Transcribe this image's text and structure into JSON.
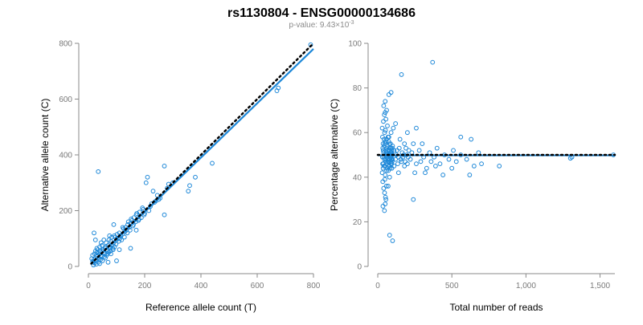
{
  "title": "rs1130804 - ENSG00000134686",
  "subtitle": {
    "prefix": "p-value: 9.43×10",
    "exponent": "-3"
  },
  "colors": {
    "points": "#1e88d8",
    "fit": "#1e88d8",
    "reference": "#000000",
    "axis": "#8a8a8a"
  },
  "chart_data": [
    {
      "type": "scatter",
      "xlabel": "Reference allele count (T)",
      "ylabel": "Alternative allele count (C)",
      "xlim": [
        0,
        800
      ],
      "ylim": [
        0,
        800
      ],
      "xticks": [
        {
          "v": 0,
          "label": "0"
        },
        {
          "v": 200,
          "label": "200"
        },
        {
          "v": 400,
          "label": "400"
        },
        {
          "v": 600,
          "label": "600"
        },
        {
          "v": 800,
          "label": "800"
        }
      ],
      "yticks": [
        {
          "v": 0,
          "label": "0"
        },
        {
          "v": 200,
          "label": "200"
        },
        {
          "v": 400,
          "label": "400"
        },
        {
          "v": 600,
          "label": "600"
        },
        {
          "v": 800,
          "label": "800"
        }
      ],
      "fit_line": [
        [
          10,
          10
        ],
        [
          800,
          780
        ]
      ],
      "reference_line": [
        [
          10,
          10
        ],
        [
          800,
          800
        ]
      ],
      "points": [
        [
          790,
          795
        ],
        [
          675,
          640
        ],
        [
          670,
          630
        ],
        [
          440,
          370
        ],
        [
          380,
          320
        ],
        [
          360,
          290
        ],
        [
          355,
          270
        ],
        [
          270,
          360
        ],
        [
          270,
          185
        ],
        [
          285,
          295
        ],
        [
          280,
          280
        ],
        [
          210,
          320
        ],
        [
          205,
          300
        ],
        [
          230,
          270
        ],
        [
          35,
          340
        ],
        [
          300,
          300
        ],
        [
          250,
          240
        ],
        [
          240,
          235
        ],
        [
          220,
          215
        ],
        [
          200,
          190
        ],
        [
          195,
          205
        ],
        [
          180,
          170
        ],
        [
          170,
          185
        ],
        [
          160,
          150
        ],
        [
          155,
          165
        ],
        [
          150,
          155
        ],
        [
          145,
          140
        ],
        [
          140,
          150
        ],
        [
          135,
          130
        ],
        [
          130,
          125
        ],
        [
          125,
          135
        ],
        [
          120,
          115
        ],
        [
          115,
          110
        ],
        [
          110,
          120
        ],
        [
          105,
          100
        ],
        [
          100,
          95
        ],
        [
          95,
          105
        ],
        [
          90,
          150
        ],
        [
          90,
          85
        ],
        [
          85,
          80
        ],
        [
          80,
          90
        ],
        [
          75,
          70
        ],
        [
          70,
          75
        ],
        [
          65,
          60
        ],
        [
          60,
          65
        ],
        [
          55,
          50
        ],
        [
          50,
          55
        ],
        [
          45,
          40
        ],
        [
          40,
          45
        ],
        [
          35,
          30
        ],
        [
          30,
          35
        ],
        [
          25,
          20
        ],
        [
          20,
          25
        ],
        [
          18,
          15
        ],
        [
          15,
          18
        ],
        [
          22,
          12
        ],
        [
          28,
          22
        ],
        [
          12,
          28
        ],
        [
          32,
          40
        ],
        [
          38,
          25
        ],
        [
          42,
          55
        ],
        [
          48,
          35
        ],
        [
          52,
          60
        ],
        [
          58,
          45
        ],
        [
          62,
          70
        ],
        [
          68,
          55
        ],
        [
          72,
          50
        ],
        [
          78,
          65
        ],
        [
          82,
          75
        ],
        [
          88,
          60
        ],
        [
          92,
          110
        ],
        [
          98,
          80
        ],
        [
          102,
          115
        ],
        [
          108,
          90
        ],
        [
          112,
          100
        ],
        [
          118,
          95
        ],
        [
          122,
          140
        ],
        [
          128,
          105
        ],
        [
          132,
          140
        ],
        [
          138,
          120
        ],
        [
          142,
          160
        ],
        [
          148,
          130
        ],
        [
          152,
          170
        ],
        [
          158,
          145
        ],
        [
          162,
          175
        ],
        [
          168,
          160
        ],
        [
          172,
          190
        ],
        [
          178,
          165
        ],
        [
          182,
          195
        ],
        [
          188,
          175
        ],
        [
          192,
          210
        ],
        [
          198,
          185
        ],
        [
          215,
          200
        ],
        [
          225,
          225
        ],
        [
          235,
          230
        ],
        [
          245,
          255
        ],
        [
          255,
          245
        ],
        [
          20,
          120
        ],
        [
          25,
          95
        ],
        [
          30,
          65
        ],
        [
          40,
          70
        ],
        [
          50,
          20
        ],
        [
          60,
          30
        ],
        [
          70,
          15
        ],
        [
          80,
          45
        ],
        [
          100,
          20
        ],
        [
          110,
          60
        ],
        [
          45,
          85
        ],
        [
          55,
          95
        ],
        [
          65,
          40
        ],
        [
          75,
          110
        ],
        [
          150,
          65
        ],
        [
          170,
          130
        ],
        [
          30,
          50
        ],
        [
          35,
          15
        ],
        [
          15,
          40
        ],
        [
          25,
          55
        ],
        [
          40,
          10
        ],
        [
          18,
          5
        ],
        [
          22,
          45
        ],
        [
          28,
          8
        ],
        [
          33,
          60
        ],
        [
          44,
          25
        ],
        [
          48,
          75
        ],
        [
          57,
          35
        ],
        [
          63,
          85
        ],
        [
          67,
          45
        ],
        [
          73,
          95
        ],
        [
          77,
          55
        ],
        [
          83,
          105
        ],
        [
          87,
          65
        ],
        [
          93,
          70
        ]
      ]
    },
    {
      "type": "scatter",
      "xlabel": "Total number of reads",
      "ylabel": "Percentage alternative (C)",
      "xlim": [
        0,
        1600
      ],
      "ylim": [
        0,
        100
      ],
      "xticks": [
        {
          "v": 0,
          "label": "0"
        },
        {
          "v": 500,
          "label": "500"
        },
        {
          "v": 1000,
          "label": "1,000"
        },
        {
          "v": 1500,
          "label": "1,500"
        }
      ],
      "yticks": [
        {
          "v": 0,
          "label": "0"
        },
        {
          "v": 20,
          "label": "20"
        },
        {
          "v": 40,
          "label": "40"
        },
        {
          "v": 60,
          "label": "60"
        },
        {
          "v": 80,
          "label": "80"
        },
        {
          "v": 100,
          "label": "100"
        }
      ],
      "fit_line": [
        [
          0,
          49.8
        ],
        [
          1600,
          49.8
        ]
      ],
      "reference_line": [
        [
          0,
          50
        ],
        [
          1600,
          50
        ]
      ],
      "points": [
        [
          370,
          91.5
        ],
        [
          160,
          86
        ],
        [
          90,
          78
        ],
        [
          75,
          77
        ],
        [
          50,
          28
        ],
        [
          80,
          14
        ],
        [
          100,
          11.5
        ],
        [
          1590,
          50
        ],
        [
          1300,
          48.5
        ],
        [
          1310,
          49
        ],
        [
          820,
          45
        ],
        [
          700,
          46
        ],
        [
          680,
          51
        ],
        [
          650,
          45
        ],
        [
          630,
          57
        ],
        [
          620,
          41
        ],
        [
          600,
          48
        ],
        [
          560,
          58
        ],
        [
          530,
          47
        ],
        [
          510,
          52
        ],
        [
          480,
          48
        ],
        [
          450,
          50
        ],
        [
          420,
          46
        ],
        [
          400,
          53
        ],
        [
          390,
          45
        ],
        [
          380,
          49
        ],
        [
          360,
          47
        ],
        [
          350,
          51
        ],
        [
          330,
          44
        ],
        [
          310,
          49
        ],
        [
          290,
          47
        ],
        [
          280,
          52
        ],
        [
          260,
          46
        ],
        [
          250,
          42
        ],
        [
          240,
          55
        ],
        [
          230,
          51
        ],
        [
          220,
          48
        ],
        [
          210,
          52
        ],
        [
          200,
          46
        ],
        [
          190,
          53
        ],
        [
          180,
          45
        ],
        [
          170,
          49
        ],
        [
          160,
          47
        ],
        [
          150,
          57
        ],
        [
          140,
          49
        ],
        [
          130,
          52
        ],
        [
          120,
          48
        ],
        [
          110,
          45
        ],
        [
          105,
          62
        ],
        [
          100,
          54
        ],
        [
          95,
          44
        ],
        [
          90,
          60
        ],
        [
          85,
          51
        ],
        [
          80,
          40
        ],
        [
          75,
          58
        ],
        [
          70,
          36
        ],
        [
          65,
          63
        ],
        [
          60,
          43
        ],
        [
          55,
          66
        ],
        [
          52,
          31
        ],
        [
          50,
          69
        ],
        [
          48,
          39
        ],
        [
          46,
          60
        ],
        [
          44,
          48
        ],
        [
          42,
          57
        ],
        [
          40,
          35
        ],
        [
          38,
          65
        ],
        [
          36,
          44
        ],
        [
          34,
          53
        ],
        [
          32,
          49
        ],
        [
          30,
          62
        ],
        [
          30,
          42
        ],
        [
          32,
          58
        ],
        [
          34,
          38
        ],
        [
          36,
          55
        ],
        [
          38,
          46
        ],
        [
          40,
          51
        ],
        [
          42,
          45
        ],
        [
          44,
          68
        ],
        [
          46,
          33
        ],
        [
          48,
          55
        ],
        [
          50,
          41
        ],
        [
          52,
          61
        ],
        [
          54,
          47
        ],
        [
          56,
          52
        ],
        [
          58,
          36
        ],
        [
          60,
          57
        ],
        [
          62,
          50
        ],
        [
          64,
          44
        ],
        [
          66,
          54
        ],
        [
          68,
          48
        ],
        [
          70,
          52
        ],
        [
          72,
          43
        ],
        [
          74,
          56
        ],
        [
          76,
          47
        ],
        [
          78,
          50
        ],
        [
          80,
          53
        ],
        [
          82,
          45
        ],
        [
          84,
          49
        ],
        [
          86,
          55
        ],
        [
          88,
          46
        ],
        [
          90,
          51
        ],
        [
          92,
          48
        ],
        [
          94,
          52
        ],
        [
          96,
          47
        ],
        [
          98,
          53
        ],
        [
          35,
          27
        ],
        [
          45,
          25
        ],
        [
          55,
          30
        ],
        [
          40,
          72
        ],
        [
          50,
          74
        ],
        [
          60,
          70
        ],
        [
          120,
          64
        ],
        [
          140,
          42
        ],
        [
          180,
          55
        ],
        [
          200,
          60
        ],
        [
          240,
          30
        ],
        [
          260,
          62
        ],
        [
          300,
          55
        ],
        [
          320,
          42
        ],
        [
          440,
          41
        ],
        [
          500,
          44
        ],
        [
          560,
          50
        ],
        [
          33,
          46
        ],
        [
          37,
          52
        ],
        [
          41,
          49
        ],
        [
          43,
          54
        ],
        [
          47,
          45
        ],
        [
          49,
          50
        ],
        [
          51,
          56
        ],
        [
          53,
          48
        ],
        [
          57,
          51
        ],
        [
          59,
          46
        ],
        [
          61,
          53
        ],
        [
          63,
          49
        ],
        [
          67,
          47
        ],
        [
          69,
          58
        ],
        [
          71,
          45
        ],
        [
          73,
          50
        ],
        [
          77,
          55
        ],
        [
          79,
          48
        ],
        [
          81,
          52
        ],
        [
          83,
          44
        ],
        [
          85,
          50
        ],
        [
          87,
          47
        ],
        [
          89,
          53
        ],
        [
          91,
          49
        ],
        [
          93,
          51
        ],
        [
          95,
          46
        ],
        [
          97,
          50
        ],
        [
          99,
          48
        ],
        [
          110,
          52
        ],
        [
          125,
          50
        ],
        [
          135,
          46
        ],
        [
          145,
          53
        ],
        [
          155,
          48
        ],
        [
          165,
          51
        ],
        [
          175,
          50
        ],
        [
          185,
          47
        ],
        [
          195,
          50
        ],
        [
          205,
          49
        ]
      ]
    }
  ]
}
